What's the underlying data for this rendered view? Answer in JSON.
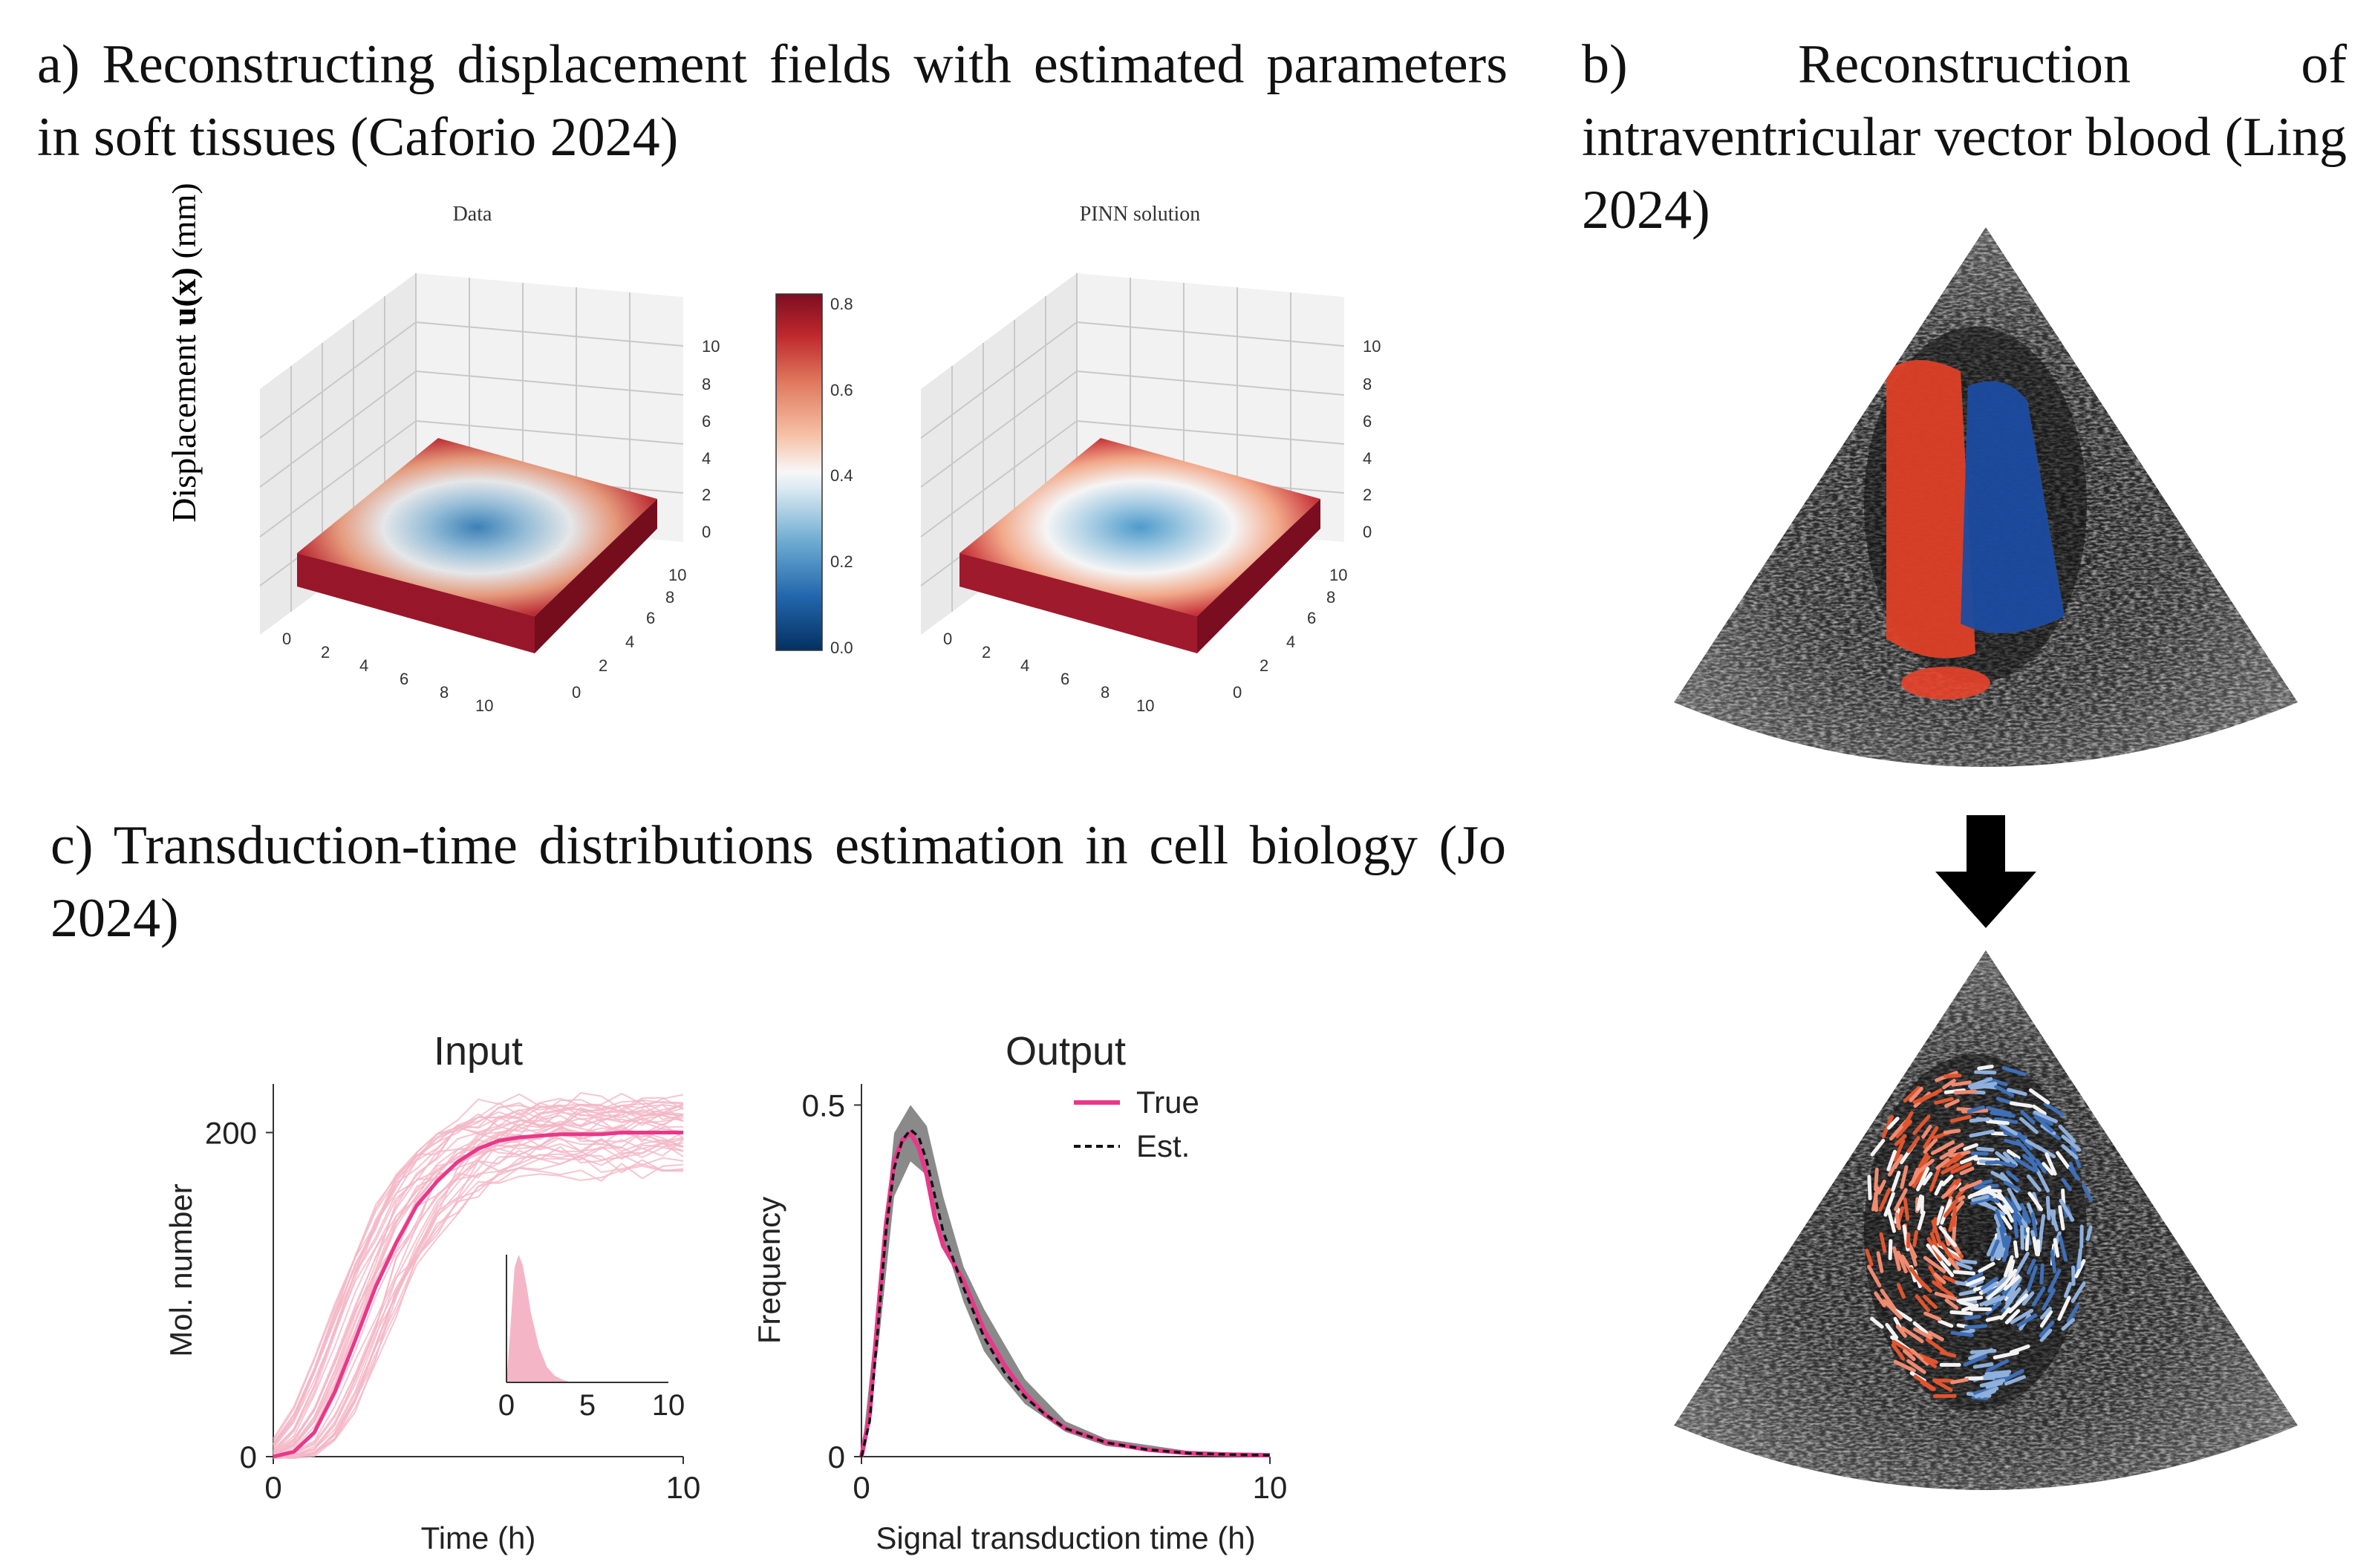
{
  "panel_a": {
    "heading": "a) Reconstructing displacement fields with estimated parameters in soft tissues (Caforio 2024)",
    "zlabel_prefix": "Displacement ",
    "zlabel_bold": "u(x)",
    "zlabel_suffix": " (mm)",
    "plots": [
      {
        "title": "Data",
        "kind": "noisy"
      },
      {
        "title": "PINN solution",
        "kind": "smooth"
      }
    ],
    "colorbar": {
      "colormap": "RdBu",
      "min": 0.0,
      "max": 0.8,
      "ticks": [
        "0.8",
        "0.6",
        "0.4",
        "0.2",
        "0.0"
      ]
    },
    "z_ticks": [
      "10",
      "8",
      "6",
      "4",
      "2",
      "0"
    ],
    "x_ticks": [
      "0",
      "2",
      "4",
      "6",
      "8",
      "10"
    ],
    "y_ticks": [
      "0",
      "2",
      "4",
      "6",
      "8",
      "10"
    ]
  },
  "panel_b": {
    "heading": "b) Reconstruction of intraventricular vector blood (Ling 2024)",
    "images": [
      "echocardiogram-color-doppler",
      "echocardiogram-vector-flow"
    ],
    "arrow": "down-arrow-icon"
  },
  "panel_c": {
    "heading": "c) Transduction-time distributions estimation in cell biology (Jo 2024)",
    "colors": {
      "true": "#e8388a",
      "light": "#f4b6c6",
      "band": "#7d7d7d",
      "est": "#111111"
    }
  },
  "chart_data": [
    {
      "type": "line",
      "title": "Input",
      "xlabel": "Time (h)",
      "ylabel": "Mol. number",
      "xlim": [
        0,
        10
      ],
      "ylim": [
        0,
        230
      ],
      "x_ticks": [
        "0",
        "10"
      ],
      "y_ticks": [
        "0",
        "200"
      ],
      "series": [
        {
          "name": "mean",
          "x": [
            0,
            0.5,
            1,
            1.5,
            2,
            2.5,
            3,
            3.5,
            4,
            4.5,
            5,
            5.5,
            6,
            6.5,
            7,
            7.5,
            8,
            8.5,
            9,
            9.5,
            10
          ],
          "y": [
            0,
            3,
            15,
            40,
            72,
            105,
            132,
            155,
            170,
            182,
            190,
            195,
            197,
            198,
            199,
            199,
            199,
            200,
            200,
            200,
            200
          ]
        }
      ],
      "inset": {
        "type": "area",
        "x_ticks": [
          "0",
          "5",
          "10"
        ],
        "x": [
          0,
          0.25,
          0.5,
          0.75,
          1,
          1.25,
          1.5,
          2,
          2.5,
          3,
          3.5,
          4
        ],
        "y": [
          0,
          0.45,
          0.9,
          1.0,
          0.92,
          0.75,
          0.55,
          0.28,
          0.12,
          0.05,
          0.02,
          0
        ]
      }
    },
    {
      "type": "line",
      "title": "Output",
      "xlabel": "Signal transduction time (h)",
      "ylabel": "Frequency",
      "xlim": [
        0,
        10
      ],
      "ylim": [
        0,
        0.53
      ],
      "x_ticks": [
        "0",
        "10"
      ],
      "y_ticks": [
        "0",
        "0.5"
      ],
      "legend": [
        "True",
        "Est."
      ],
      "series": [
        {
          "name": "True",
          "x": [
            0,
            0.2,
            0.4,
            0.6,
            0.8,
            1.0,
            1.2,
            1.4,
            1.6,
            1.8,
            2.0,
            2.5,
            3.0,
            3.5,
            4.0,
            4.5,
            5,
            6,
            7,
            8,
            9,
            10
          ],
          "y": [
            0,
            0.06,
            0.2,
            0.33,
            0.42,
            0.45,
            0.46,
            0.44,
            0.4,
            0.34,
            0.3,
            0.25,
            0.18,
            0.13,
            0.09,
            0.06,
            0.04,
            0.02,
            0.01,
            0.005,
            0.003,
            0.002
          ]
        },
        {
          "name": "Est.",
          "x": [
            0,
            0.2,
            0.4,
            0.6,
            0.8,
            1.0,
            1.2,
            1.4,
            1.6,
            1.8,
            2.0,
            2.5,
            3.0,
            3.5,
            4.0,
            4.5,
            5,
            6,
            7,
            8,
            9,
            10
          ],
          "y": [
            0,
            0.05,
            0.18,
            0.32,
            0.41,
            0.45,
            0.465,
            0.455,
            0.42,
            0.37,
            0.32,
            0.24,
            0.17,
            0.12,
            0.085,
            0.06,
            0.04,
            0.02,
            0.01,
            0.005,
            0.003,
            0.002
          ]
        },
        {
          "name": "band_upper",
          "x": [
            0,
            0.4,
            0.8,
            1.2,
            1.6,
            2.0,
            2.5,
            3.0,
            3.5,
            4.0,
            5,
            6,
            8,
            10
          ],
          "y": [
            0,
            0.22,
            0.46,
            0.5,
            0.47,
            0.37,
            0.27,
            0.21,
            0.16,
            0.11,
            0.05,
            0.025,
            0.008,
            0.003
          ]
        },
        {
          "name": "band_lower",
          "x": [
            0,
            0.4,
            0.8,
            1.2,
            1.6,
            2.0,
            2.5,
            3.0,
            3.5,
            4.0,
            5,
            6,
            8,
            10
          ],
          "y": [
            0,
            0.15,
            0.37,
            0.42,
            0.4,
            0.31,
            0.22,
            0.15,
            0.11,
            0.075,
            0.035,
            0.015,
            0.003,
            0.001
          ]
        }
      ]
    }
  ]
}
